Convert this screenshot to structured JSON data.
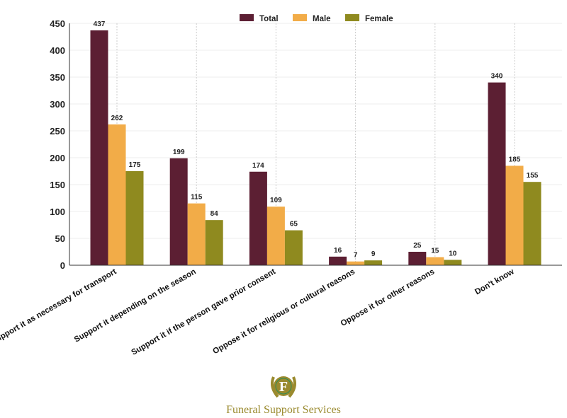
{
  "chart_data": {
    "type": "bar",
    "title": "",
    "xlabel": "",
    "ylabel": "",
    "ylim": [
      0,
      450
    ],
    "yticks": [
      0,
      50,
      100,
      150,
      200,
      250,
      300,
      350,
      400,
      450
    ],
    "grid": true,
    "legend_position": "top-center",
    "categories": [
      "Support it as necessary for transport",
      "Support it depending on the season",
      "Support it if the person gave prior consent",
      "Oppose it for religious or cultural reasons",
      "Oppose it for other reasons",
      "Don't know"
    ],
    "series": [
      {
        "name": "Total",
        "color": "#5c1f33",
        "values": [
          437,
          199,
          174,
          16,
          25,
          340
        ]
      },
      {
        "name": "Male",
        "color": "#f2ac48",
        "values": [
          262,
          115,
          109,
          7,
          15,
          185
        ]
      },
      {
        "name": "Female",
        "color": "#8f8a1f",
        "values": [
          175,
          84,
          65,
          9,
          10,
          155
        ]
      }
    ]
  },
  "logo": {
    "letter": "F",
    "text": "Funeral Support Services"
  }
}
